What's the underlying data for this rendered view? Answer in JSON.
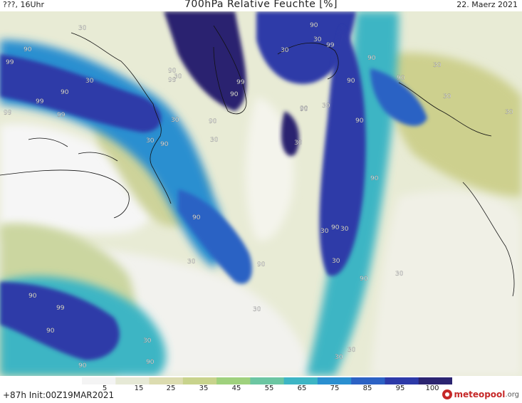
{
  "header": {
    "left": "???, 16Uhr",
    "title": "700hPa Relative Feuchte [%]",
    "date": "22. Maerz 2021"
  },
  "footer": {
    "run": "+87h Init:00Z19MAR2021"
  },
  "logo": {
    "name": "meteopool",
    "tld": ".org"
  },
  "colorbar": {
    "ticks": [
      "5",
      "15",
      "25",
      "35",
      "45",
      "55",
      "65",
      "75",
      "85",
      "95",
      "100"
    ],
    "colors": [
      "#f4f4f4",
      "#e6e9d6",
      "#dcdcb0",
      "#c8d38c",
      "#9fd17d",
      "#6cc6a2",
      "#3db5c4",
      "#2a8fd0",
      "#2c62c4",
      "#2d3aa8",
      "#2b2470"
    ]
  },
  "contour_labels": [
    {
      "text": "30"
    },
    {
      "text": "90"
    },
    {
      "text": "99"
    },
    {
      "text": "90"
    },
    {
      "text": "30"
    },
    {
      "text": "90"
    },
    {
      "text": "99"
    },
    {
      "text": "30"
    },
    {
      "text": "99"
    },
    {
      "text": "30"
    },
    {
      "text": "99"
    },
    {
      "text": "90"
    },
    {
      "text": "30"
    },
    {
      "text": "99"
    },
    {
      "text": "90"
    },
    {
      "text": "30"
    },
    {
      "text": "99"
    },
    {
      "text": "90"
    },
    {
      "text": "99"
    },
    {
      "text": "90"
    },
    {
      "text": "30"
    },
    {
      "text": "90"
    },
    {
      "text": "90"
    },
    {
      "text": "30"
    },
    {
      "text": "30"
    },
    {
      "text": "90"
    },
    {
      "text": "90"
    },
    {
      "text": "30"
    },
    {
      "text": "90"
    },
    {
      "text": "30"
    },
    {
      "text": "90"
    },
    {
      "text": "90"
    },
    {
      "text": "30"
    },
    {
      "text": "90"
    },
    {
      "text": "30"
    },
    {
      "text": "90"
    },
    {
      "text": "30"
    },
    {
      "text": "90"
    },
    {
      "text": "30"
    },
    {
      "text": "30"
    },
    {
      "text": "90"
    },
    {
      "text": "30"
    },
    {
      "text": "90"
    },
    {
      "text": "99"
    },
    {
      "text": "90"
    },
    {
      "text": "90"
    },
    {
      "text": "30"
    },
    {
      "text": "30"
    },
    {
      "text": "30"
    },
    {
      "text": "30"
    },
    {
      "text": "30"
    },
    {
      "text": "90"
    }
  ]
}
